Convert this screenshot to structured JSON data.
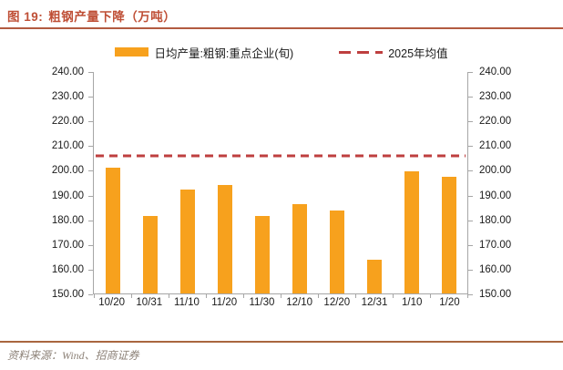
{
  "header": {
    "figure_label": "图 19:",
    "title": "粗钢产量下降（万吨）"
  },
  "legend": {
    "bar_label": "日均产量:粗钢:重点企业(旬)",
    "line_label": "2025年均值"
  },
  "footer": {
    "source": "资料来源：Wind、招商证券"
  },
  "colors": {
    "bar": "#F7A11D",
    "mean_line": "#BE3F3F",
    "title": "#BF4F36",
    "title_rule": "#B25B41",
    "axis": "#A6A6A6",
    "footer_rule": "#A9663F",
    "footer_text": "#8D8278"
  },
  "chart_data": {
    "type": "bar",
    "title": "粗钢产量下降（万吨）",
    "categories": [
      "10/20",
      "10/31",
      "11/10",
      "11/20",
      "11/30",
      "12/10",
      "12/20",
      "12/31",
      "1/10",
      "1/20"
    ],
    "series": [
      {
        "name": "日均产量:粗钢:重点企业(旬)",
        "type": "bar",
        "values": [
          201.3,
          181.5,
          192.4,
          194.0,
          181.5,
          186.3,
          183.8,
          163.7,
          199.7,
          197.4
        ]
      },
      {
        "name": "2025年均值",
        "type": "constant-dashed-line",
        "value": 205.9
      }
    ],
    "xlabel": "",
    "ylabel": "",
    "ylim": [
      150,
      240
    ],
    "ytick_step": 10,
    "yticks": [
      "240.00",
      "230.00",
      "220.00",
      "210.00",
      "200.00",
      "190.00",
      "180.00",
      "170.00",
      "160.00",
      "150.00"
    ],
    "y_axis_sides": "both",
    "grid": false,
    "legend_position": "top"
  }
}
